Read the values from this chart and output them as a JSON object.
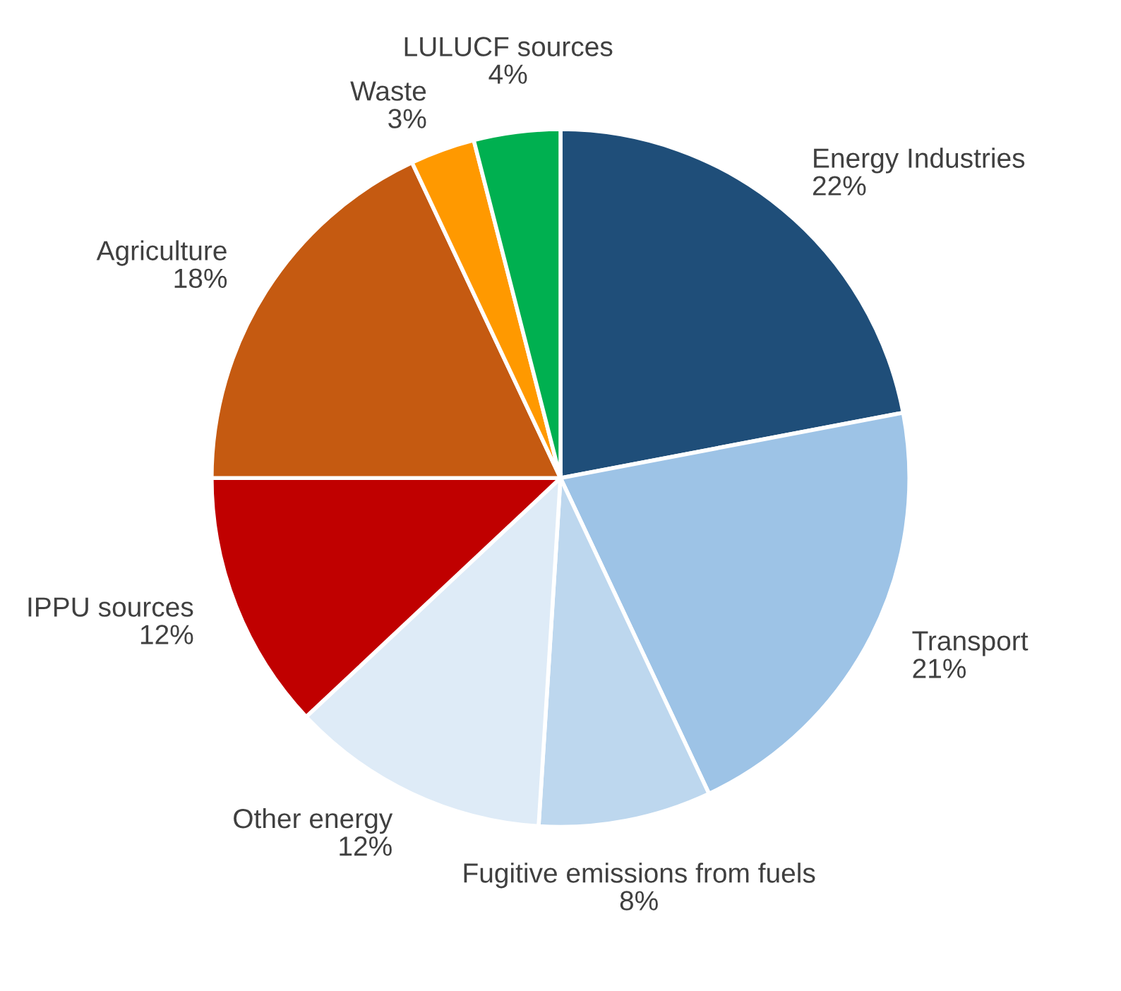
{
  "chart_data": {
    "type": "pie",
    "categories": [
      "Energy Industries",
      "Transport",
      "Fugitive emissions from fuels",
      "Other energy",
      "IPPU sources",
      "Agriculture",
      "Waste",
      "LULUCF sources"
    ],
    "values": [
      22,
      21,
      8,
      12,
      12,
      18,
      3,
      4
    ],
    "colors": [
      "#1f4e79",
      "#9dc3e6",
      "#bdd7ee",
      "#deebf7",
      "#c00000",
      "#c55a11",
      "#ff9900",
      "#00b050"
    ],
    "value_labels": [
      "22%",
      "21%",
      "8%",
      "12%",
      "12%",
      "18%",
      "3%",
      "4%"
    ],
    "legend": false
  }
}
